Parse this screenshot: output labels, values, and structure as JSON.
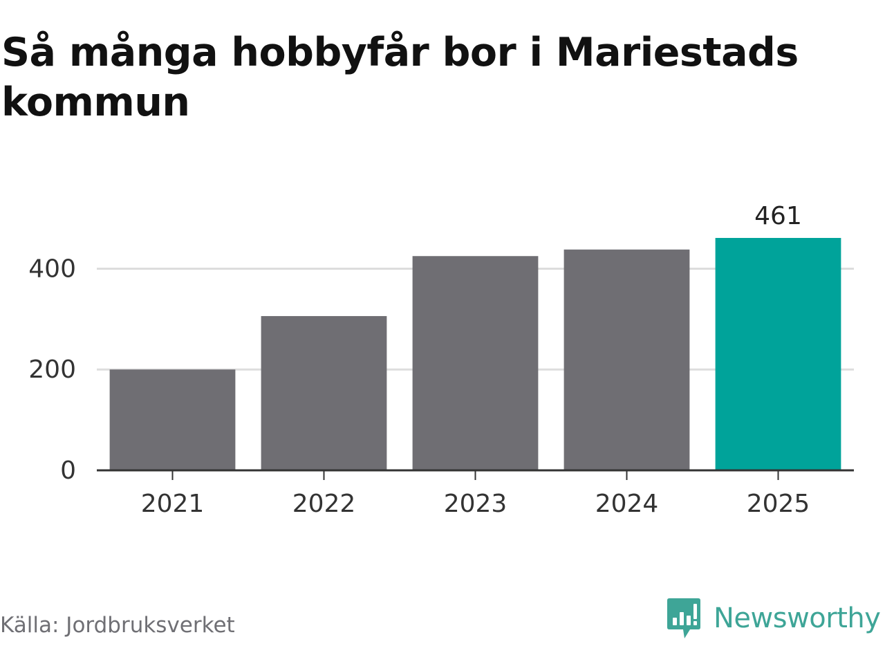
{
  "title": "Så många hobbyfår bor i Mariestads kommun",
  "source": "Källa: Jordbruksverket",
  "brand": {
    "name": "Newsworthy",
    "icon": "newsworthy-logo-icon",
    "color": "#3ea597"
  },
  "colors": {
    "bar": "#6f6e73",
    "highlight": "#00a39a",
    "grid": "#dddddd",
    "axis": "#333333"
  },
  "chart_data": {
    "type": "bar",
    "categories": [
      "2021",
      "2022",
      "2023",
      "2024",
      "2025"
    ],
    "values": [
      200,
      306,
      425,
      438,
      461
    ],
    "highlight_index": 4,
    "data_labels": [
      {
        "index": 4,
        "text": "461"
      }
    ],
    "yticks": [
      0,
      200,
      400
    ],
    "ylim": [
      0,
      461
    ],
    "grid": true,
    "title": "Så många hobbyfår bor i Mariestads kommun",
    "xlabel": "",
    "ylabel": ""
  }
}
